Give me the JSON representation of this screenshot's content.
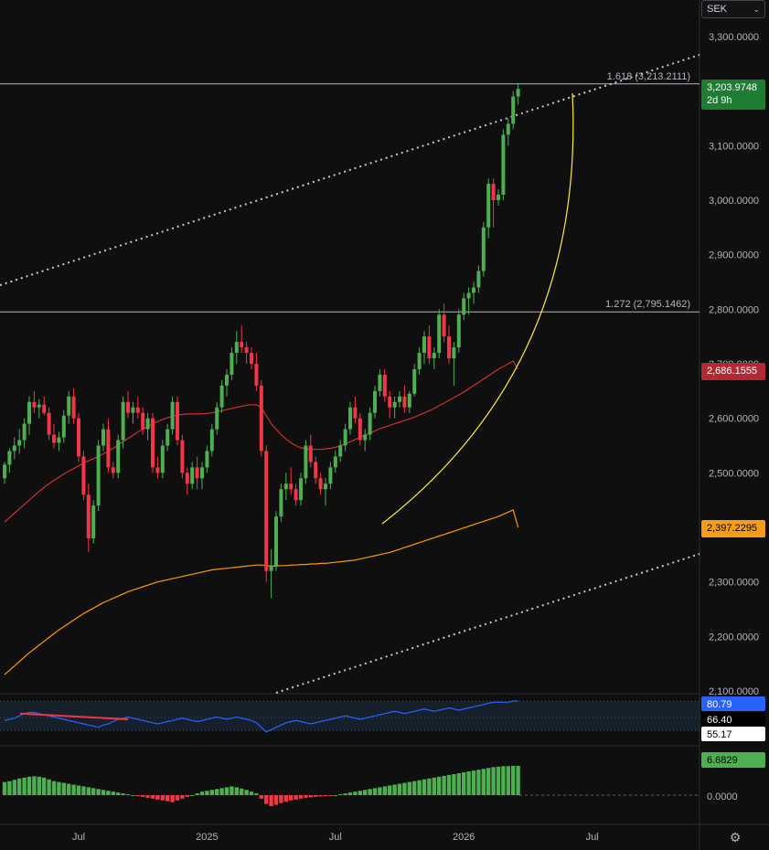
{
  "currency": {
    "label": "SEK",
    "chevron_icon": "chevron-down-icon"
  },
  "settings_icon": "gear-icon",
  "colors": {
    "background": "#0f0f0f",
    "up": "#4caf50",
    "down": "#f23645",
    "ma_short": "#d32f2f",
    "ma_long": "#ff9800",
    "arc": "#ffeb3b",
    "rsi": "#2962ff",
    "macd_up": "#4caf50",
    "macd_down": "#f23645"
  },
  "price_tags": {
    "last": {
      "value": "3,203.9748",
      "countdown": "2d 9h",
      "color": "#1e7d32"
    },
    "ma_short": {
      "value": "2,686.1555",
      "color": "#b22833"
    },
    "ma_long": {
      "value": "2,397.2295",
      "color": "#f59d16"
    }
  },
  "fib_labels": [
    {
      "text": "1.618 (3,213.2111)",
      "price": 3213.2111
    },
    {
      "text": "1.272 (2,795.1462)",
      "price": 2795.1462
    }
  ],
  "rsi_tags": [
    {
      "value": "80.79",
      "bg": "#2962ff",
      "fg": "#ffffff"
    },
    {
      "value": "66.40",
      "bg": "#000000",
      "fg": "#ffffff"
    },
    {
      "value": "55.17",
      "bg": "#ffffff",
      "fg": "#000000"
    }
  ],
  "macd_tags": [
    {
      "value": "6.6829",
      "bg": "#4caf50",
      "fg": "#000000"
    },
    {
      "value": "0.0000",
      "bg": "none",
      "fg": "#b2b5be"
    }
  ],
  "chart_data": {
    "type": "candlestick",
    "price_axis": {
      "ylim": [
        2090,
        3340
      ],
      "ticks": [
        2100,
        2200,
        2300,
        2400,
        2500,
        2600,
        2700,
        2800,
        2900,
        3000,
        3100,
        3200,
        3300
      ],
      "tick_labels": [
        "2,100.0000",
        "2,200.0000",
        "2,300.0000",
        "2,400.0000",
        "2,500.0000",
        "2,600.0000",
        "2,700.0000",
        "2,800.0000",
        "2,900.0000",
        "3,000.0000",
        "3,100.0000",
        "3,200.0000",
        "3,300.0000"
      ]
    },
    "time_axis": {
      "labels": [
        "Jul",
        "2025",
        "Jul",
        "2026",
        "Jul"
      ],
      "label_index": [
        15,
        41,
        67,
        93,
        119
      ]
    },
    "ohlc": [
      [
        2490,
        2520,
        2480,
        2515
      ],
      [
        2515,
        2545,
        2500,
        2540
      ],
      [
        2540,
        2565,
        2525,
        2550
      ],
      [
        2550,
        2580,
        2535,
        2560
      ],
      [
        2560,
        2600,
        2545,
        2590
      ],
      [
        2590,
        2640,
        2570,
        2630
      ],
      [
        2630,
        2650,
        2610,
        2620
      ],
      [
        2620,
        2635,
        2600,
        2625
      ],
      [
        2625,
        2640,
        2605,
        2610
      ],
      [
        2610,
        2620,
        2560,
        2570
      ],
      [
        2570,
        2590,
        2545,
        2555
      ],
      [
        2555,
        2575,
        2540,
        2565
      ],
      [
        2565,
        2615,
        2555,
        2605
      ],
      [
        2605,
        2650,
        2590,
        2640
      ],
      [
        2640,
        2655,
        2590,
        2600
      ],
      [
        2600,
        2610,
        2520,
        2530
      ],
      [
        2530,
        2540,
        2450,
        2460
      ],
      [
        2460,
        2480,
        2355,
        2380
      ],
      [
        2380,
        2450,
        2370,
        2440
      ],
      [
        2440,
        2560,
        2430,
        2550
      ],
      [
        2550,
        2590,
        2540,
        2580
      ],
      [
        2580,
        2600,
        2500,
        2510
      ],
      [
        2510,
        2520,
        2490,
        2500
      ],
      [
        2500,
        2570,
        2490,
        2560
      ],
      [
        2560,
        2640,
        2545,
        2630
      ],
      [
        2630,
        2650,
        2600,
        2610
      ],
      [
        2610,
        2630,
        2590,
        2620
      ],
      [
        2620,
        2640,
        2600,
        2610
      ],
      [
        2610,
        2620,
        2570,
        2580
      ],
      [
        2580,
        2610,
        2560,
        2600
      ],
      [
        2600,
        2610,
        2500,
        2510
      ],
      [
        2510,
        2530,
        2490,
        2500
      ],
      [
        2500,
        2560,
        2490,
        2550
      ],
      [
        2550,
        2590,
        2540,
        2580
      ],
      [
        2580,
        2640,
        2570,
        2630
      ],
      [
        2630,
        2640,
        2550,
        2560
      ],
      [
        2560,
        2570,
        2490,
        2500
      ],
      [
        2500,
        2510,
        2460,
        2480
      ],
      [
        2480,
        2520,
        2470,
        2510
      ],
      [
        2510,
        2530,
        2470,
        2490
      ],
      [
        2490,
        2520,
        2470,
        2510
      ],
      [
        2510,
        2550,
        2500,
        2540
      ],
      [
        2540,
        2590,
        2530,
        2580
      ],
      [
        2580,
        2630,
        2570,
        2620
      ],
      [
        2620,
        2670,
        2610,
        2660
      ],
      [
        2660,
        2690,
        2640,
        2680
      ],
      [
        2680,
        2730,
        2670,
        2720
      ],
      [
        2720,
        2760,
        2700,
        2740
      ],
      [
        2740,
        2770,
        2720,
        2730
      ],
      [
        2730,
        2740,
        2700,
        2720
      ],
      [
        2720,
        2730,
        2690,
        2700
      ],
      [
        2700,
        2720,
        2650,
        2660
      ],
      [
        2660,
        2670,
        2530,
        2540
      ],
      [
        2540,
        2550,
        2300,
        2320
      ],
      [
        2320,
        2360,
        2270,
        2330
      ],
      [
        2330,
        2430,
        2320,
        2420
      ],
      [
        2420,
        2480,
        2410,
        2470
      ],
      [
        2470,
        2500,
        2450,
        2480
      ],
      [
        2480,
        2510,
        2460,
        2470
      ],
      [
        2470,
        2480,
        2440,
        2450
      ],
      [
        2450,
        2500,
        2440,
        2490
      ],
      [
        2490,
        2560,
        2480,
        2550
      ],
      [
        2550,
        2570,
        2510,
        2520
      ],
      [
        2520,
        2530,
        2480,
        2490
      ],
      [
        2490,
        2500,
        2460,
        2470
      ],
      [
        2470,
        2490,
        2440,
        2480
      ],
      [
        2480,
        2520,
        2470,
        2510
      ],
      [
        2510,
        2540,
        2500,
        2530
      ],
      [
        2530,
        2560,
        2520,
        2550
      ],
      [
        2550,
        2590,
        2540,
        2580
      ],
      [
        2580,
        2630,
        2570,
        2620
      ],
      [
        2620,
        2640,
        2590,
        2600
      ],
      [
        2600,
        2610,
        2550,
        2560
      ],
      [
        2560,
        2580,
        2540,
        2570
      ],
      [
        2570,
        2620,
        2560,
        2610
      ],
      [
        2610,
        2660,
        2600,
        2650
      ],
      [
        2650,
        2690,
        2640,
        2680
      ],
      [
        2680,
        2690,
        2630,
        2640
      ],
      [
        2640,
        2650,
        2600,
        2620
      ],
      [
        2620,
        2640,
        2600,
        2630
      ],
      [
        2630,
        2650,
        2620,
        2640
      ],
      [
        2640,
        2660,
        2610,
        2620
      ],
      [
        2620,
        2650,
        2610,
        2645
      ],
      [
        2645,
        2700,
        2640,
        2690
      ],
      [
        2690,
        2730,
        2680,
        2720
      ],
      [
        2720,
        2760,
        2700,
        2750
      ],
      [
        2750,
        2770,
        2700,
        2710
      ],
      [
        2710,
        2730,
        2690,
        2720
      ],
      [
        2720,
        2800,
        2710,
        2790
      ],
      [
        2790,
        2810,
        2740,
        2750
      ],
      [
        2750,
        2770,
        2700,
        2710
      ],
      [
        2710,
        2740,
        2660,
        2730
      ],
      [
        2730,
        2800,
        2720,
        2790
      ],
      [
        2790,
        2830,
        2780,
        2820
      ],
      [
        2820,
        2840,
        2790,
        2830
      ],
      [
        2830,
        2850,
        2810,
        2840
      ],
      [
        2840,
        2880,
        2830,
        2870
      ],
      [
        2870,
        2960,
        2860,
        2950
      ],
      [
        2950,
        3040,
        2930,
        3030
      ],
      [
        3030,
        3040,
        2950,
        3000
      ],
      [
        3000,
        3020,
        2990,
        3010
      ],
      [
        3010,
        3130,
        3000,
        3120
      ],
      [
        3120,
        3150,
        3100,
        3140
      ],
      [
        3140,
        3200,
        3130,
        3190
      ],
      [
        3190,
        3215,
        3175,
        3204
      ]
    ],
    "ma_short": [
      2410,
      2418,
      2426,
      2434,
      2442,
      2450,
      2458,
      2466,
      2473,
      2480,
      2486,
      2492,
      2498,
      2503,
      2508,
      2513,
      2518,
      2522,
      2526,
      2530,
      2535,
      2540,
      2545,
      2551,
      2557,
      2563,
      2569,
      2575,
      2580,
      2585,
      2590,
      2594,
      2598,
      2601,
      2604,
      2606,
      2607,
      2608,
      2608,
      2608,
      2608,
      2609,
      2610,
      2612,
      2614,
      2616,
      2618,
      2620,
      2622,
      2624,
      2625,
      2625,
      2620,
      2605,
      2590,
      2580,
      2570,
      2562,
      2555,
      2550,
      2546,
      2544,
      2543,
      2543,
      2543,
      2544,
      2545,
      2547,
      2550,
      2553,
      2557,
      2561,
      2565,
      2569,
      2573,
      2577,
      2581,
      2584,
      2587,
      2590,
      2593,
      2596,
      2599,
      2602,
      2606,
      2610,
      2614,
      2618,
      2623,
      2628,
      2633,
      2638,
      2643,
      2648,
      2654,
      2660,
      2666,
      2672,
      2678,
      2684,
      2690,
      2695,
      2700,
      2705,
      2686
    ],
    "ma_long": [
      2130,
      2138,
      2146,
      2154,
      2162,
      2170,
      2177,
      2184,
      2191,
      2198,
      2205,
      2212,
      2218,
      2224,
      2230,
      2236,
      2242,
      2247,
      2252,
      2257,
      2262,
      2266,
      2270,
      2274,
      2278,
      2282,
      2285,
      2288,
      2291,
      2294,
      2297,
      2300,
      2302,
      2304,
      2306,
      2308,
      2310,
      2312,
      2314,
      2316,
      2318,
      2320,
      2322,
      2323,
      2324,
      2325,
      2326,
      2327,
      2328,
      2329,
      2330,
      2331,
      2331,
      2330,
      2329,
      2329,
      2330,
      2330,
      2331,
      2331,
      2332,
      2332,
      2333,
      2333,
      2334,
      2334,
      2335,
      2336,
      2337,
      2338,
      2339,
      2340,
      2342,
      2344,
      2346,
      2348,
      2350,
      2352,
      2354,
      2357,
      2360,
      2363,
      2366,
      2369,
      2372,
      2375,
      2378,
      2381,
      2384,
      2387,
      2390,
      2393,
      2396,
      2399,
      2402,
      2405,
      2408,
      2411,
      2414,
      2417,
      2420,
      2424,
      2428,
      2432,
      2397
    ],
    "fib_levels": [
      {
        "label": "1.618",
        "value": 3213.2111
      },
      {
        "label": "1.272",
        "value": 2795.1462
      }
    ],
    "rsi": {
      "levels": [
        80.79,
        66.4,
        55.17
      ],
      "values": [
        64,
        65,
        66,
        68,
        70,
        71,
        71,
        70,
        69,
        68,
        67,
        66,
        65,
        64,
        63,
        62,
        61,
        60,
        59,
        58,
        60,
        61,
        63,
        65,
        66,
        67,
        66,
        65,
        64,
        63,
        62,
        61,
        62,
        63,
        64,
        65,
        66,
        65,
        64,
        63,
        64,
        65,
        66,
        67,
        66,
        65,
        66,
        67,
        66,
        65,
        64,
        62,
        58,
        54,
        56,
        58,
        60,
        62,
        63,
        64,
        63,
        62,
        61,
        62,
        63,
        64,
        65,
        66,
        67,
        68,
        67,
        66,
        65,
        66,
        67,
        68,
        69,
        70,
        71,
        72,
        71,
        70,
        71,
        72,
        73,
        74,
        73,
        72,
        73,
        74,
        75,
        74,
        73,
        74,
        75,
        76,
        77,
        78,
        79,
        80,
        80,
        80,
        80,
        81,
        81
      ]
    },
    "macd": {
      "zero_label": "0.0000",
      "last": 6.6829,
      "values": [
        3,
        3.2,
        3.5,
        3.8,
        4,
        4.2,
        4.3,
        4.2,
        4,
        3.6,
        3.2,
        3,
        2.8,
        2.6,
        2.4,
        2.2,
        2,
        1.8,
        1.6,
        1.4,
        1.2,
        1,
        0.8,
        0.6,
        0.4,
        0.2,
        0,
        -0.2,
        -0.4,
        -0.6,
        -0.8,
        -1,
        -1.2,
        -1.4,
        -1.6,
        -1.2,
        -0.8,
        -0.4,
        0,
        0.4,
        0.8,
        1,
        1.2,
        1.4,
        1.6,
        1.8,
        2,
        1.8,
        1.5,
        1.2,
        0.8,
        0.4,
        -0.8,
        -2,
        -2.5,
        -2.2,
        -1.8,
        -1.5,
        -1.2,
        -1,
        -0.8,
        -0.6,
        -0.5,
        -0.4,
        -0.3,
        -0.2,
        -0.1,
        0,
        0.2,
        0.4,
        0.6,
        0.8,
        1,
        1.2,
        1.4,
        1.6,
        1.8,
        2,
        2.2,
        2.4,
        2.6,
        2.8,
        3,
        3.2,
        3.4,
        3.6,
        3.8,
        4,
        4.2,
        4.4,
        4.6,
        4.8,
        5,
        5.2,
        5.4,
        5.6,
        5.8,
        6,
        6.2,
        6.4,
        6.5,
        6.6,
        6.6,
        6.7,
        6.68
      ]
    }
  }
}
